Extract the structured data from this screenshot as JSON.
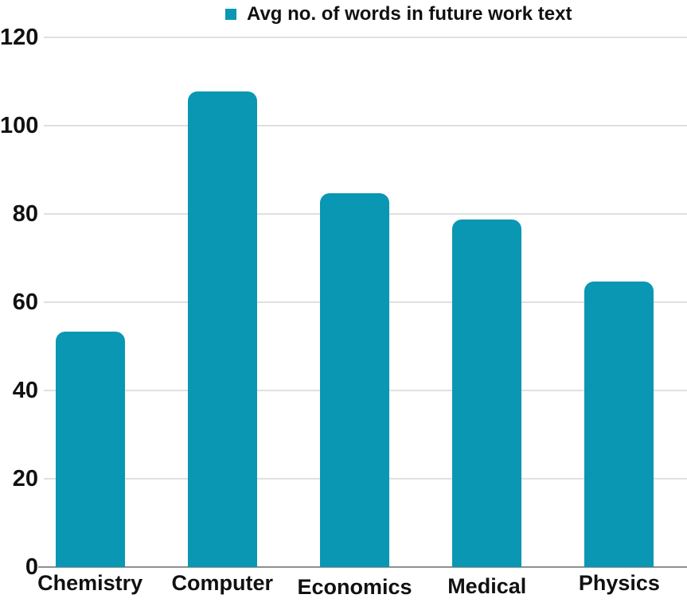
{
  "legend": {
    "label": "Avg no. of words in future work text"
  },
  "colors": {
    "bar": "#0997b3",
    "gridline": "#e0e0e0",
    "axis": "#8f8f8f",
    "text": "#111111",
    "background": "#ffffff"
  },
  "chart_data": {
    "type": "bar",
    "title": "",
    "categories": [
      "Chemistry",
      "Computer",
      "Economics",
      "Medical",
      "Physics"
    ],
    "series": [
      {
        "name": "Avg no. of words in future work text",
        "values": [
          53.3,
          107.7,
          84.7,
          78.7,
          64.7
        ]
      }
    ],
    "xlabel": "",
    "ylabel": "",
    "ylim": [
      0,
      120
    ],
    "yticks": [
      0,
      20,
      40,
      60,
      80,
      100,
      120
    ],
    "grid": true,
    "legend_position": "top"
  }
}
